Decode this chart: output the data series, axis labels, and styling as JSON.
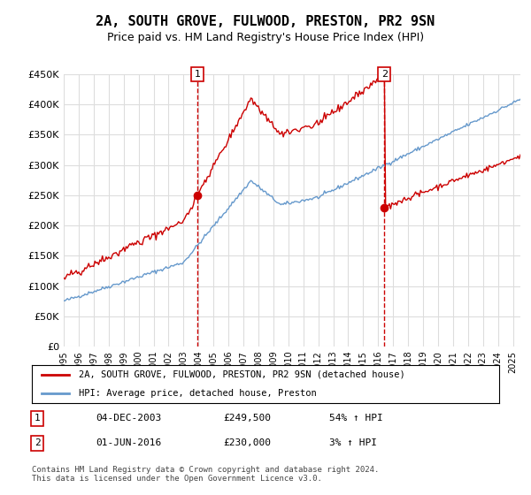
{
  "title": "2A, SOUTH GROVE, FULWOOD, PRESTON, PR2 9SN",
  "subtitle": "Price paid vs. HM Land Registry's House Price Index (HPI)",
  "title_fontsize": 11,
  "subtitle_fontsize": 9,
  "ylim": [
    0,
    450000
  ],
  "yticks": [
    0,
    50000,
    100000,
    150000,
    200000,
    250000,
    300000,
    350000,
    400000,
    450000
  ],
  "ytick_labels": [
    "£0",
    "£50K",
    "£100K",
    "£150K",
    "£200K",
    "£250K",
    "£300K",
    "£350K",
    "£400K",
    "£450K"
  ],
  "xlim_start": 1995.0,
  "xlim_end": 2025.5,
  "xtick_years": [
    1995,
    1996,
    1997,
    1998,
    1999,
    2000,
    2001,
    2002,
    2003,
    2004,
    2005,
    2006,
    2007,
    2008,
    2009,
    2010,
    2011,
    2012,
    2013,
    2014,
    2015,
    2016,
    2017,
    2018,
    2019,
    2020,
    2021,
    2022,
    2023,
    2024,
    2025
  ],
  "sale1_x": 2003.92,
  "sale1_y": 249500,
  "sale1_label": "1",
  "sale2_x": 2016.42,
  "sale2_y": 230000,
  "sale2_label": "2",
  "line_red_color": "#cc0000",
  "line_blue_color": "#6699cc",
  "marker_color": "#cc0000",
  "vline_color": "#cc0000",
  "legend_label_red": "2A, SOUTH GROVE, FULWOOD, PRESTON, PR2 9SN (detached house)",
  "legend_label_blue": "HPI: Average price, detached house, Preston",
  "table_row1": [
    "1",
    "04-DEC-2003",
    "£249,500",
    "54% ↑ HPI"
  ],
  "table_row2": [
    "2",
    "01-JUN-2016",
    "£230,000",
    "3% ↑ HPI"
  ],
  "footer": "Contains HM Land Registry data © Crown copyright and database right 2024.\nThis data is licensed under the Open Government Licence v3.0.",
  "bg_color": "#ffffff",
  "grid_color": "#dddddd"
}
